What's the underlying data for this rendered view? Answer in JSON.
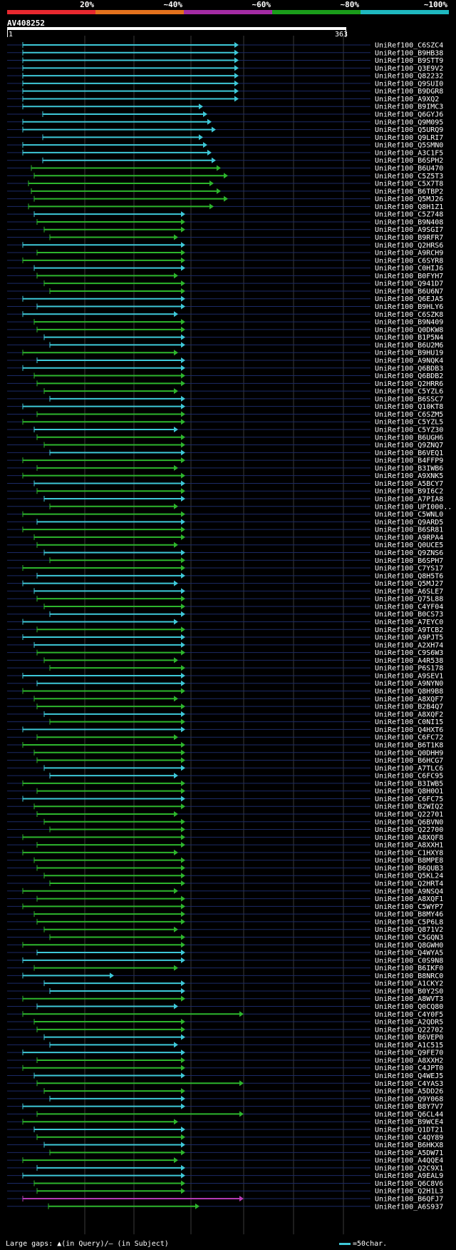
{
  "legend": {
    "segments": [
      {
        "label": "20%",
        "color": "#e8282f"
      },
      {
        "label": "~40%",
        "color": "#e2711d"
      },
      {
        "label": "~60%",
        "color": "#a22ba3"
      },
      {
        "label": "~80%",
        "color": "#1a9c1a"
      },
      {
        "label": "~100%",
        "color": "#1fb8c0"
      }
    ]
  },
  "query": {
    "name": "AV408252",
    "start": "1",
    "end": "363"
  },
  "colors": {
    "high": "#3ec8d8",
    "mid": "#2db52d",
    "low": "#b23ab2",
    "row_line": "#1b2a66",
    "grid": "#3a3a3a",
    "gap": "#ffe066"
  },
  "hits": [
    "UniRef100_C6SZC4",
    "UniRef100_B9HB38",
    "UniRef100_B9STT9",
    "UniRef100_Q3E9V2",
    "UniRef100_Q82232",
    "UniRef100_Q9SUI0",
    "UniRef100_B9DGR8",
    "UniRef100_A9XQ2",
    "UniRef100_B9IMC3",
    "UniRef100_Q6GYJ6",
    "UniRef100_Q9M095",
    "UniRef100_Q5URQ9",
    "UniRef100_Q9LRI7",
    "UniRef100_Q5SMN0",
    "UniRef100_A3C1F5",
    "UniRef100_B6SPH2",
    "UniRef100_B6U470",
    "UniRef100_C5Z5T3",
    "UniRef100_C5X7T8",
    "UniRef100_B6TBP2",
    "UniRef100_Q5MJ26",
    "UniRef100_Q8H1Z1",
    "UniRef100_C5Z748",
    "UniRef100_B9N408",
    "UniRef100_A9SGI7",
    "UniRef100_B9RFR7",
    "UniRef100_Q2HRS6",
    "UniRef100_A9RCH9",
    "UniRef100_C6SYR8",
    "UniRef100_C0HIJ6",
    "UniRef100_B0FYH7",
    "UniRef100_Q941D7",
    "UniRef100_B6U6N7",
    "UniRef100_Q6EJA5",
    "UniRef100_B9HLY6",
    "UniRef100_C6SZK8",
    "UniRef100_B9N409",
    "UniRef100_Q0DKW8",
    "UniRef100_B1P5N4",
    "UniRef100_B6U2M6",
    "UniRef100_B9HU19",
    "UniRef100_A9NQK4",
    "UniRef100_Q6BDB3",
    "UniRef100_Q6BDB2",
    "UniRef100_Q2HRR6",
    "UniRef100_C5YZL6",
    "UniRef100_B6SSC7",
    "UniRef100_Q10KT8",
    "UniRef100_C6SZM5",
    "UniRef100_C5YZL5",
    "UniRef100_C5YZ30",
    "UniRef100_B6UGH6",
    "UniRef100_Q9ZNQ7",
    "UniRef100_B6VEQ1",
    "UniRef100_B4FFP9",
    "UniRef100_B3IWB6",
    "UniRef100_A9XNK5",
    "UniRef100_A5BCY7",
    "UniRef100_B9I6C2",
    "UniRef100_A7PIA8",
    "UniRef100_UPI000..",
    "UniRef100_C5WNL0",
    "UniRef100_Q9ARD5",
    "UniRef100_B6SR81",
    "UniRef100_A9RPA4",
    "UniRef100_Q0UCE5",
    "UniRef100_Q9ZNS6",
    "UniRef100_B6SPH7",
    "UniRef100_C7YS17",
    "UniRef100_Q8H5T6",
    "UniRef100_Q5MJ27",
    "UniRef100_A6SLE7",
    "UniRef100_Q75L88",
    "UniRef100_C4YF04",
    "UniRef100_B0CS73",
    "UniRef100_A7EYC0",
    "UniRef100_A9TCB2",
    "UniRef100_A9PJT5",
    "UniRef100_A2XH74",
    "UniRef100_C9S6W3",
    "UniRef100_A4R538",
    "UniRef100_P6S178",
    "UniRef100_A9SEV1",
    "UniRef100_A9NYN0",
    "UniRef100_Q8H9B8",
    "UniRef100_A8XQF7",
    "UniRef100_B2B4Q7",
    "UniRef100_A8XQF2",
    "UniRef100_C0NI15",
    "UniRef100_Q4HXT6",
    "UniRef100_C6FC72",
    "UniRef100_B6T1K8",
    "UniRef100_Q0DHH9",
    "UniRef100_B6HCG7",
    "UniRef100_A7TLC6",
    "UniRef100_C6FC95",
    "UniRef100_B3IWB5",
    "UniRef100_Q8H0O1",
    "UniRef100_C6FC75",
    "UniRef100_B2WIQ2",
    "UniRef100_Q22701",
    "UniRef100_Q6BVN0",
    "UniRef100_Q22700",
    "UniRef100_A8XQF8",
    "UniRef100_A8XXH1",
    "UniRef100_C1HXY8",
    "UniRef100_B8MPE8",
    "UniRef100_B6QUB3",
    "UniRef100_Q5KL24",
    "UniRef100_Q2HRT4",
    "UniRef100_A9NSQ4",
    "UniRef100_A8XQF1",
    "UniRef100_C5WYP7",
    "UniRef100_B8MY46",
    "UniRef100_C5P6L8",
    "UniRef100_Q871V2",
    "UniRef100_C5GQN3",
    "UniRef100_Q8GWH0",
    "UniRef100_Q4WYA5",
    "UniRef100_C0S9N8",
    "UniRef100_B6IKF0",
    "UniRef100_B8NRC0",
    "UniRef100_A1CKY2",
    "UniRef100_B0Y2S0",
    "UniRef100_A8WVT3",
    "UniRef100_Q0CQ80",
    "UniRef100_C4Y0F5",
    "UniRef100_A2QDR5",
    "UniRef100_Q22702",
    "UniRef100_B6VEP0",
    "UniRef100_A1C515",
    "UniRef100_Q9FE70",
    "UniRef100_A8XXH2",
    "UniRef100_C4JPT0",
    "UniRef100_Q4WEJ5",
    "UniRef100_C4YAS3",
    "UniRef100_A5DD26",
    "UniRef100_Q9Y068",
    "UniRef100_B8Y7V7",
    "UniRef100_Q6CL44",
    "UniRef100_B9WCE4",
    "UniRef100_Q1DT21",
    "UniRef100_C4QY89",
    "UniRef100_B6HKX8",
    "UniRef100_A5DW71",
    "UniRef100_A4QQE4",
    "UniRef100_Q2C9X1",
    "UniRef100_A9EAL9",
    "UniRef100_Q6C8V6",
    "UniRef100_Q2H1L3",
    "UniRef100_B6QFJ7",
    "UniRef100_A6S937"
  ],
  "footer": {
    "gaps_text": "Large gaps: ▲(in Query)/– (in Subject)",
    "scale_text": "=50char."
  }
}
